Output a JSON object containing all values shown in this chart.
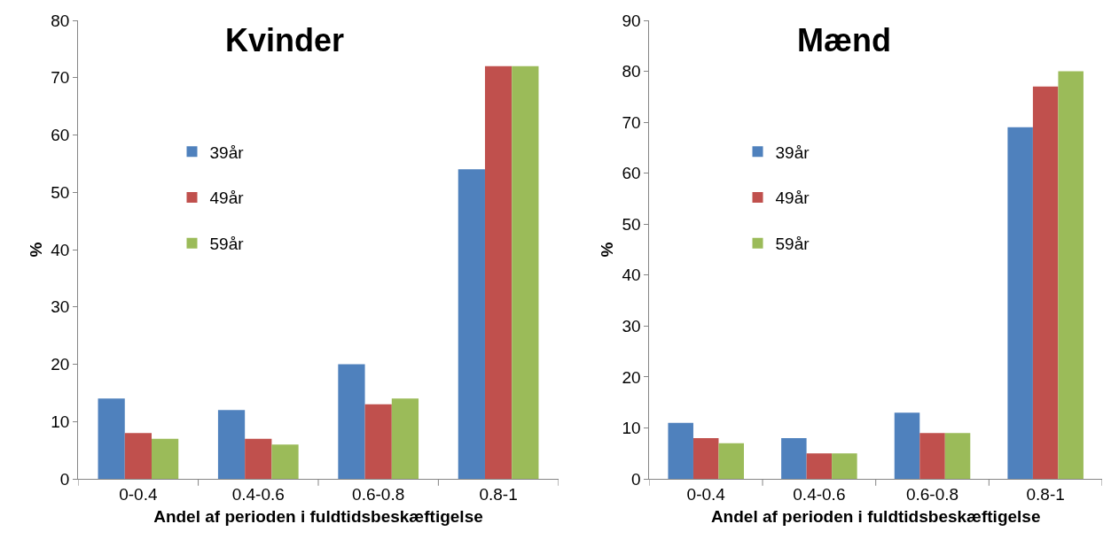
{
  "chart_data": [
    {
      "type": "bar",
      "title": "Kvinder",
      "xlabel": "Andel af perioden i fuldtidsbeskæftigelse",
      "ylabel": "%",
      "categories": [
        "0-0.4",
        "0.4-0.6",
        "0.6-0.8",
        "0.8-1"
      ],
      "ylim": [
        0,
        80
      ],
      "yticks": [
        0,
        10,
        20,
        30,
        40,
        50,
        60,
        70,
        80
      ],
      "legend": "left",
      "series": [
        {
          "name": "39år",
          "color": "#4f81bd",
          "values": [
            14,
            12,
            20,
            54
          ]
        },
        {
          "name": "49år",
          "color": "#c0504d",
          "values": [
            8,
            7,
            13,
            72
          ]
        },
        {
          "name": "59år",
          "color": "#9bbb59",
          "values": [
            7,
            6,
            14,
            72
          ]
        }
      ]
    },
    {
      "type": "bar",
      "title": "Mænd",
      "xlabel": "Andel af perioden i fuldtidsbeskæftigelse",
      "ylabel": "%",
      "categories": [
        "0-0.4",
        "0.4-0.6",
        "0.6-0.8",
        "0.8-1"
      ],
      "ylim": [
        0,
        90
      ],
      "yticks": [
        0,
        10,
        20,
        30,
        40,
        50,
        60,
        70,
        80,
        90
      ],
      "legend": "left",
      "series": [
        {
          "name": "39år",
          "color": "#4f81bd",
          "values": [
            11,
            8,
            13,
            69
          ]
        },
        {
          "name": "49år",
          "color": "#c0504d",
          "values": [
            8,
            5,
            9,
            77
          ]
        },
        {
          "name": "59år",
          "color": "#9bbb59",
          "values": [
            7,
            5,
            9,
            80
          ]
        }
      ]
    }
  ]
}
